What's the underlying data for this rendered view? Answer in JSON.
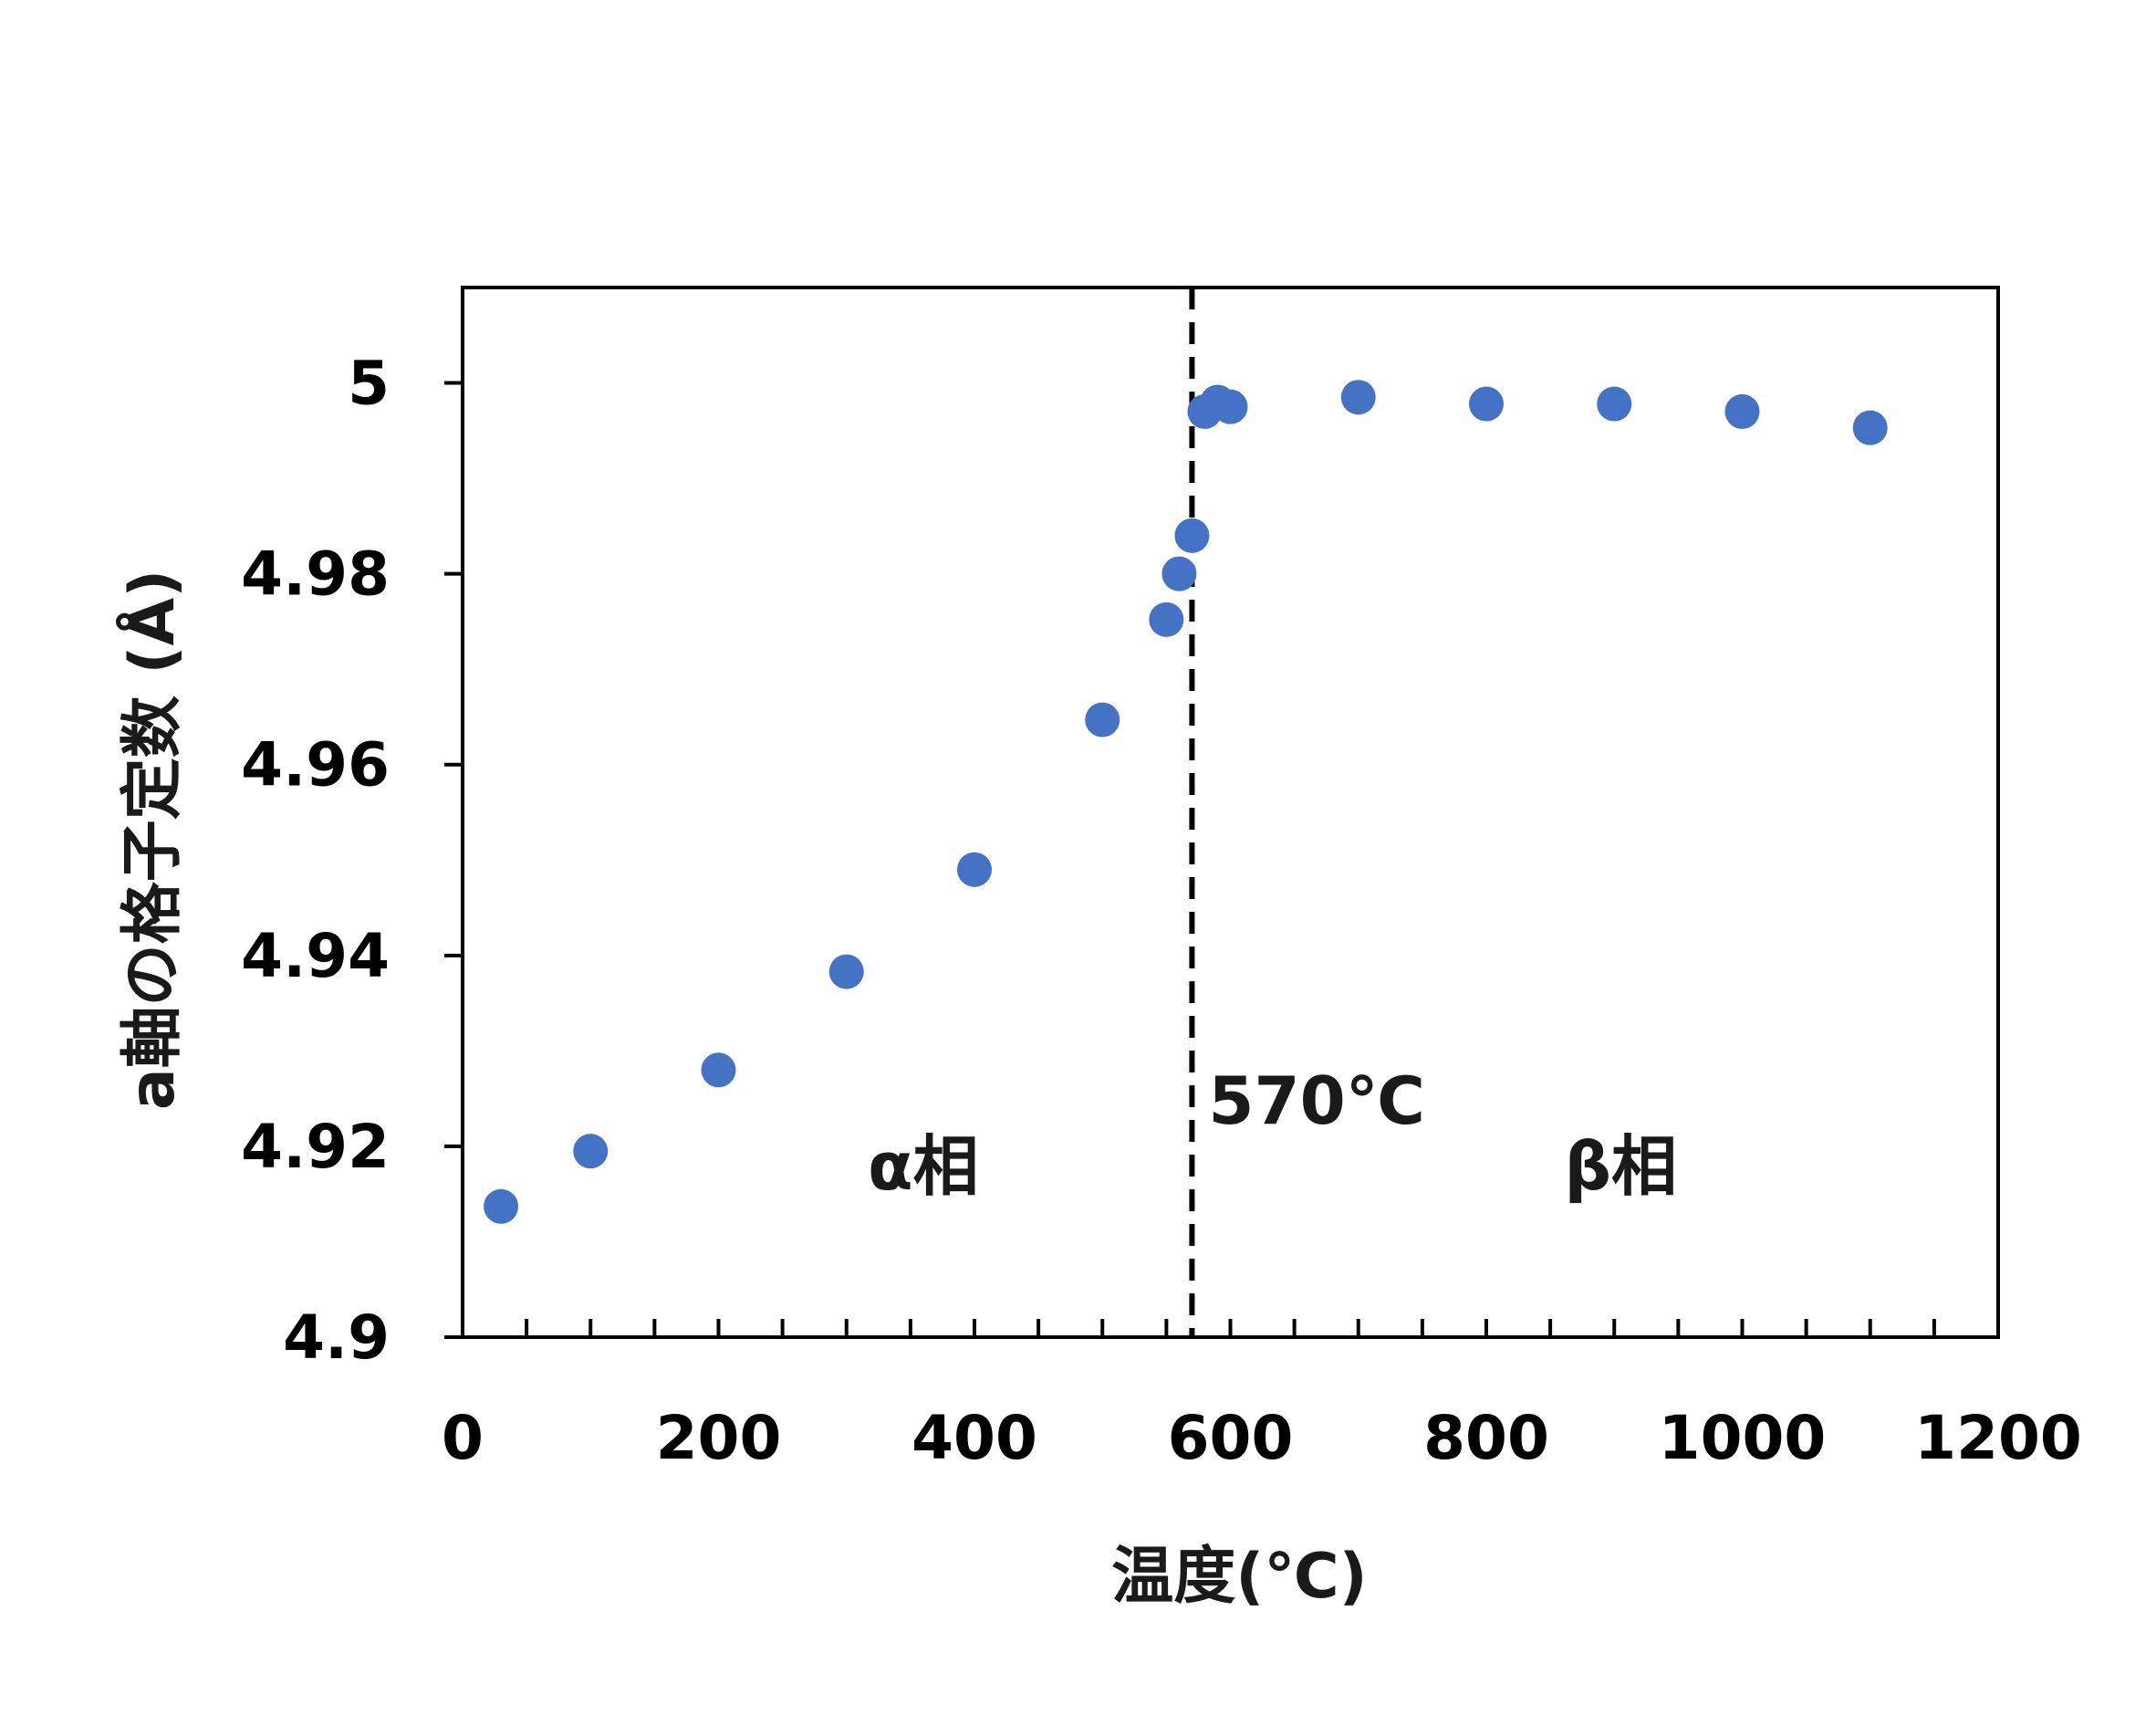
{
  "chart_data": {
    "type": "scatter",
    "xlabel": "温度(℃)",
    "ylabel": "a軸の格子定数 (Å)",
    "xlim": [
      0,
      1200
    ],
    "ylim": [
      4.9,
      5.01
    ],
    "xticks": [
      0,
      200,
      400,
      600,
      800,
      1000,
      1200
    ],
    "xtick_labels": [
      "0",
      "200",
      "400",
      "600",
      "800",
      "1000",
      "1200"
    ],
    "xminor_step": 50,
    "yticks": [
      4.9,
      4.92,
      4.94,
      4.96,
      4.98,
      5.0
    ],
    "ytick_labels": [
      "4.9",
      "4.92",
      "4.94",
      "4.96",
      "4.98",
      "5"
    ],
    "grid": false,
    "marker_color": "#4472C4",
    "points": [
      {
        "x": 30,
        "y": 4.9137
      },
      {
        "x": 100,
        "y": 4.9195
      },
      {
        "x": 200,
        "y": 4.928
      },
      {
        "x": 300,
        "y": 4.9383
      },
      {
        "x": 400,
        "y": 4.949
      },
      {
        "x": 500,
        "y": 4.9647
      },
      {
        "x": 550,
        "y": 4.9752
      },
      {
        "x": 560,
        "y": 4.98
      },
      {
        "x": 570,
        "y": 4.984
      },
      {
        "x": 580,
        "y": 4.997
      },
      {
        "x": 590,
        "y": 4.998
      },
      {
        "x": 600,
        "y": 4.9975
      },
      {
        "x": 700,
        "y": 4.9985
      },
      {
        "x": 800,
        "y": 4.9978
      },
      {
        "x": 900,
        "y": 4.9978
      },
      {
        "x": 1000,
        "y": 4.997
      },
      {
        "x": 1100,
        "y": 4.9953
      }
    ],
    "transition": {
      "x": 570,
      "label": "570℃",
      "style": "dashed",
      "color": "#000000"
    },
    "annotations": [
      {
        "text": "α相",
        "x": 360,
        "y": 4.9155
      },
      {
        "text": "β相",
        "x": 905,
        "y": 4.9155
      }
    ]
  }
}
